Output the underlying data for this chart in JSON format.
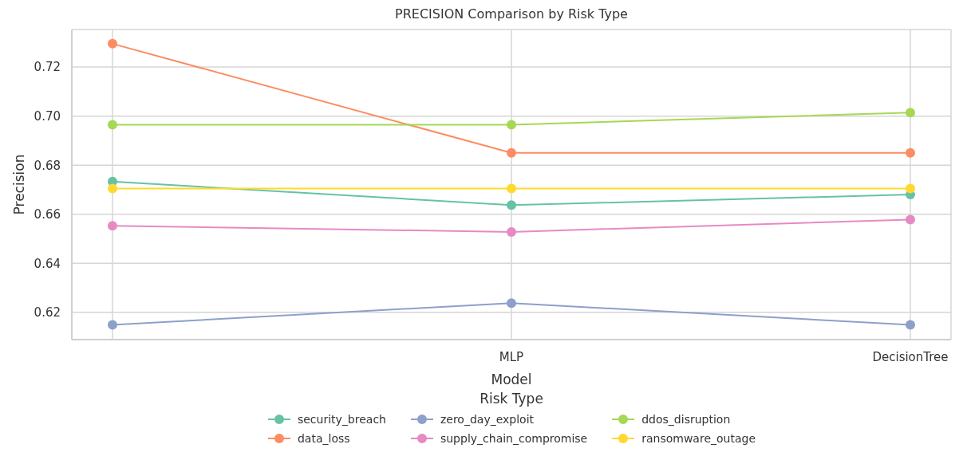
{
  "chart_data": {
    "type": "line",
    "title": "PRECISION Comparison by Risk Type",
    "xlabel": "Model",
    "ylabel": "Precision",
    "legend_title": "Risk Type",
    "categories": [
      null,
      "MLP",
      "DecisionTree"
    ],
    "series": [
      {
        "name": "security_breach",
        "color": "#66c2a5",
        "values": [
          0.6733,
          0.6637,
          0.668
        ]
      },
      {
        "name": "data_loss",
        "color": "#fc8d62",
        "values": [
          0.7295,
          0.685,
          0.685
        ]
      },
      {
        "name": "zero_day_exploit",
        "color": "#8da0cb",
        "values": [
          0.6149,
          0.6238,
          0.6149
        ]
      },
      {
        "name": "supply_chain_compromise",
        "color": "#e78ac3",
        "values": [
          0.6553,
          0.6528,
          0.6578
        ]
      },
      {
        "name": "ddos_disruption",
        "color": "#a6d854",
        "values": [
          0.6965,
          0.6965,
          0.7014
        ]
      },
      {
        "name": "ransomware_outage",
        "color": "#ffd92f",
        "values": [
          0.6705,
          0.6705,
          0.6705
        ]
      }
    ],
    "ylim": [
      0.6089,
      0.7353
    ],
    "yticks": [
      0.62,
      0.64,
      0.66,
      0.68,
      {
        "value": 0.7,
        "label": "0.70"
      },
      0.72
    ],
    "grid": true,
    "legend": "bottom",
    "marker": "circle",
    "line_style": "solid"
  }
}
